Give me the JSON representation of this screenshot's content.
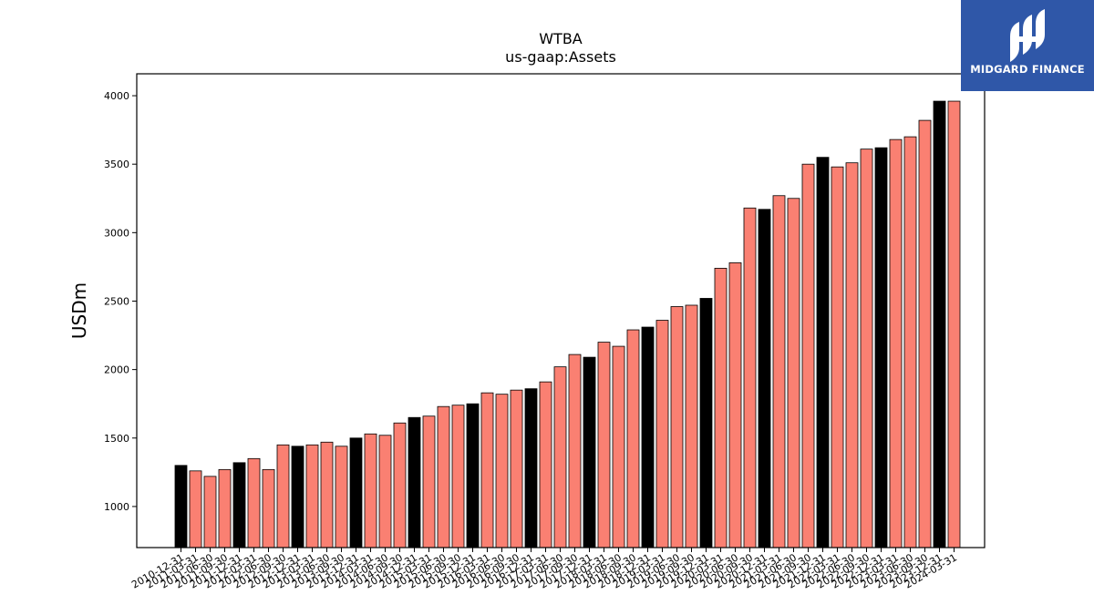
{
  "brand": {
    "name": "MIDGARD FINANCE",
    "icon": "midgard-logo-icon",
    "color": "#2f57a8"
  },
  "chart_data": {
    "type": "bar",
    "title": "WTBA",
    "subtitle": "us-gaap:Assets",
    "ylabel": "USDm",
    "xlabel": "",
    "ylim": [
      700,
      4160
    ],
    "yticks": [
      1000,
      1500,
      2000,
      2500,
      3000,
      3500,
      4000
    ],
    "grid": false,
    "colors": {
      "year_end": "#000000",
      "quarter": "#fa8072",
      "edge": "#000000"
    },
    "categories": [
      "2010-12-31",
      "2011-03-31",
      "2011-06-30",
      "2011-09-30",
      "2011-12-31",
      "2012-03-31",
      "2012-06-30",
      "2012-09-30",
      "2012-12-31",
      "2013-03-31",
      "2013-06-30",
      "2013-09-30",
      "2013-12-31",
      "2014-03-31",
      "2014-06-30",
      "2014-09-30",
      "2014-12-31",
      "2015-03-31",
      "2015-06-30",
      "2015-09-30",
      "2015-12-31",
      "2016-03-31",
      "2016-06-30",
      "2016-09-30",
      "2016-12-31",
      "2017-03-31",
      "2017-06-30",
      "2017-09-30",
      "2017-12-31",
      "2018-03-31",
      "2018-06-30",
      "2018-09-30",
      "2018-12-31",
      "2019-03-31",
      "2019-06-30",
      "2019-09-30",
      "2019-12-31",
      "2020-03-31",
      "2020-06-30",
      "2020-09-30",
      "2020-12-31",
      "2021-03-31",
      "2021-06-30",
      "2021-09-30",
      "2021-12-31",
      "2022-03-31",
      "2022-06-30",
      "2022-09-30",
      "2022-12-31",
      "2023-03-31",
      "2023-06-30",
      "2023-09-30",
      "2023-12-31",
      "2024-03-31"
    ],
    "values": [
      1300,
      1260,
      1220,
      1270,
      1320,
      1350,
      1270,
      1450,
      1440,
      1450,
      1470,
      1440,
      1500,
      1530,
      1520,
      1610,
      1650,
      1660,
      1730,
      1740,
      1750,
      1830,
      1820,
      1850,
      1860,
      1910,
      2020,
      2110,
      2090,
      2200,
      2170,
      2290,
      2310,
      2360,
      2460,
      2470,
      2520,
      2740,
      2780,
      3180,
      3170,
      3270,
      3250,
      3500,
      3550,
      3480,
      3510,
      3610,
      3620,
      3680,
      3700,
      3820,
      3960,
      3960
    ]
  }
}
